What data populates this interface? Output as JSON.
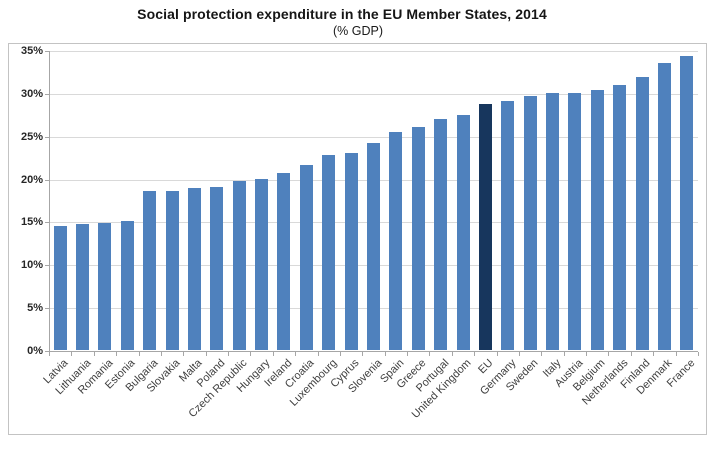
{
  "chart_data": {
    "type": "bar",
    "title": "Social protection expenditure in the EU Member States, 2014",
    "subtitle": "(% GDP)",
    "xlabel": "",
    "ylabel": "",
    "ylim": [
      0,
      35
    ],
    "ytick_step": 5,
    "ytick_labels": [
      "0%",
      "5%",
      "10%",
      "15%",
      "20%",
      "25%",
      "30%",
      "35%"
    ],
    "grid": true,
    "legend": false,
    "bar_color": "#4f81bd",
    "highlight_color": "#17365d",
    "highlight_category": "EU",
    "categories": [
      "Latvia",
      "Lithuania",
      "Romania",
      "Estonia",
      "Bulgaria",
      "Slovakia",
      "Malta",
      "Poland",
      "Czech Republic",
      "Hungary",
      "Ireland",
      "Croatia",
      "Luxembourg",
      "Cyprus",
      "Slovenia",
      "Spain",
      "Greece",
      "Portugal",
      "United Kingdom",
      "EU",
      "Germany",
      "Sweden",
      "Italy",
      "Austria",
      "Belgium",
      "Netherlands",
      "Finland",
      "Denmark",
      "France"
    ],
    "values": [
      14.5,
      14.7,
      14.8,
      15.1,
      18.5,
      18.5,
      18.9,
      19.0,
      19.7,
      19.9,
      20.6,
      21.6,
      22.7,
      23.0,
      24.1,
      25.4,
      26.0,
      26.9,
      27.4,
      28.7,
      29.1,
      29.6,
      30.0,
      30.0,
      30.3,
      30.9,
      31.9,
      33.5,
      34.3
    ]
  }
}
